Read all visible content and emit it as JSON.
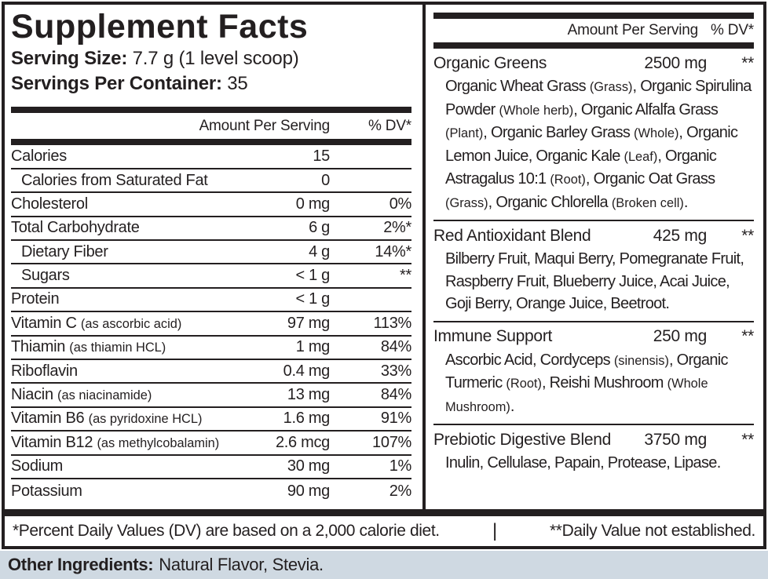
{
  "title": "Supplement Facts",
  "serving": {
    "size_label": "Serving Size:",
    "size_value": "7.7 g (1 level scoop)",
    "container_label": "Servings Per Container:",
    "container_value": "35"
  },
  "table_header": {
    "amount": "Amount Per Serving",
    "dv": "% DV*"
  },
  "nutrients": [
    {
      "name": "Calories",
      "amount": "15",
      "dv": ""
    },
    {
      "name": "Calories from Saturated Fat",
      "amount": "0",
      "dv": ""
    },
    {
      "name": "Cholesterol",
      "amount": "0 mg",
      "dv": "0%"
    },
    {
      "name": "Total Carbohydrate",
      "amount": "6 g",
      "dv": "2%*"
    },
    {
      "name": "Dietary Fiber",
      "amount": "4 g",
      "dv": "14%*"
    },
    {
      "name": "Sugars",
      "amount": "< 1 g",
      "dv": "**"
    },
    {
      "name": "Protein",
      "amount": "< 1 g",
      "dv": ""
    },
    {
      "name": "Vitamin C (as ascorbic acid)",
      "amount": "97 mg",
      "dv": "113%"
    },
    {
      "name": "Thiamin (as thiamin HCL)",
      "amount": "1 mg",
      "dv": "84%"
    },
    {
      "name": "Riboflavin",
      "amount": "0.4 mg",
      "dv": "33%"
    },
    {
      "name": "Niacin (as niacinamide)",
      "amount": "13 mg",
      "dv": "84%"
    },
    {
      "name": "Vitamin B6 (as pyridoxine HCL)",
      "amount": "1.6 mg",
      "dv": "91%"
    },
    {
      "name": "Vitamin B12 (as methylcobalamin)",
      "amount": "2.6 mcg",
      "dv": "107%"
    },
    {
      "name": "Sodium",
      "amount": "30 mg",
      "dv": "1%"
    },
    {
      "name": "Potassium",
      "amount": "90 mg",
      "dv": "2%"
    }
  ],
  "blends": [
    {
      "name": "Organic Greens",
      "amount": "2500 mg",
      "dv": "**",
      "ingredients": "Organic Wheat Grass (Grass), Organic Spirulina Powder (Whole herb), Organic Alfalfa Grass (Plant), Organic Barley Grass (Whole), Organic Lemon Juice, Organic Kale (Leaf), Organic Astragalus 10:1 (Root), Organic Oat Grass (Grass), Organic Chlorella (Broken cell)."
    },
    {
      "name": "Red Antioxidant Blend",
      "amount": "425 mg",
      "dv": "**",
      "ingredients": "Bilberry Fruit, Maqui Berry, Pomegranate Fruit, Raspberry Fruit, Blueberry Juice, Acai Juice, Goji Berry, Orange Juice, Beetroot."
    },
    {
      "name": "Immune Support",
      "amount": "250 mg",
      "dv": "**",
      "ingredients": "Ascorbic Acid, Cordyceps (sinensis), Organic Turmeric (Root), Reishi Mushroom (Whole Mushroom)."
    },
    {
      "name": "Prebiotic Digestive Blend",
      "amount": "3750 mg",
      "dv": "**",
      "ingredients": "Inulin, Cellulase, Papain, Protease, Lipase."
    }
  ],
  "footnotes": {
    "dv_note": "*Percent Daily Values (DV) are based on a 2,000 calorie diet.",
    "separator": "|",
    "not_established_note": "**Daily Value not established."
  },
  "other_ingredients": {
    "label": "Other Ingredients:",
    "value": "Natural Flavor, Stevia."
  },
  "colors": {
    "ink": "#231f20",
    "bottom_strip_background": "#cfd9e2",
    "label_background": "#ffffff"
  }
}
